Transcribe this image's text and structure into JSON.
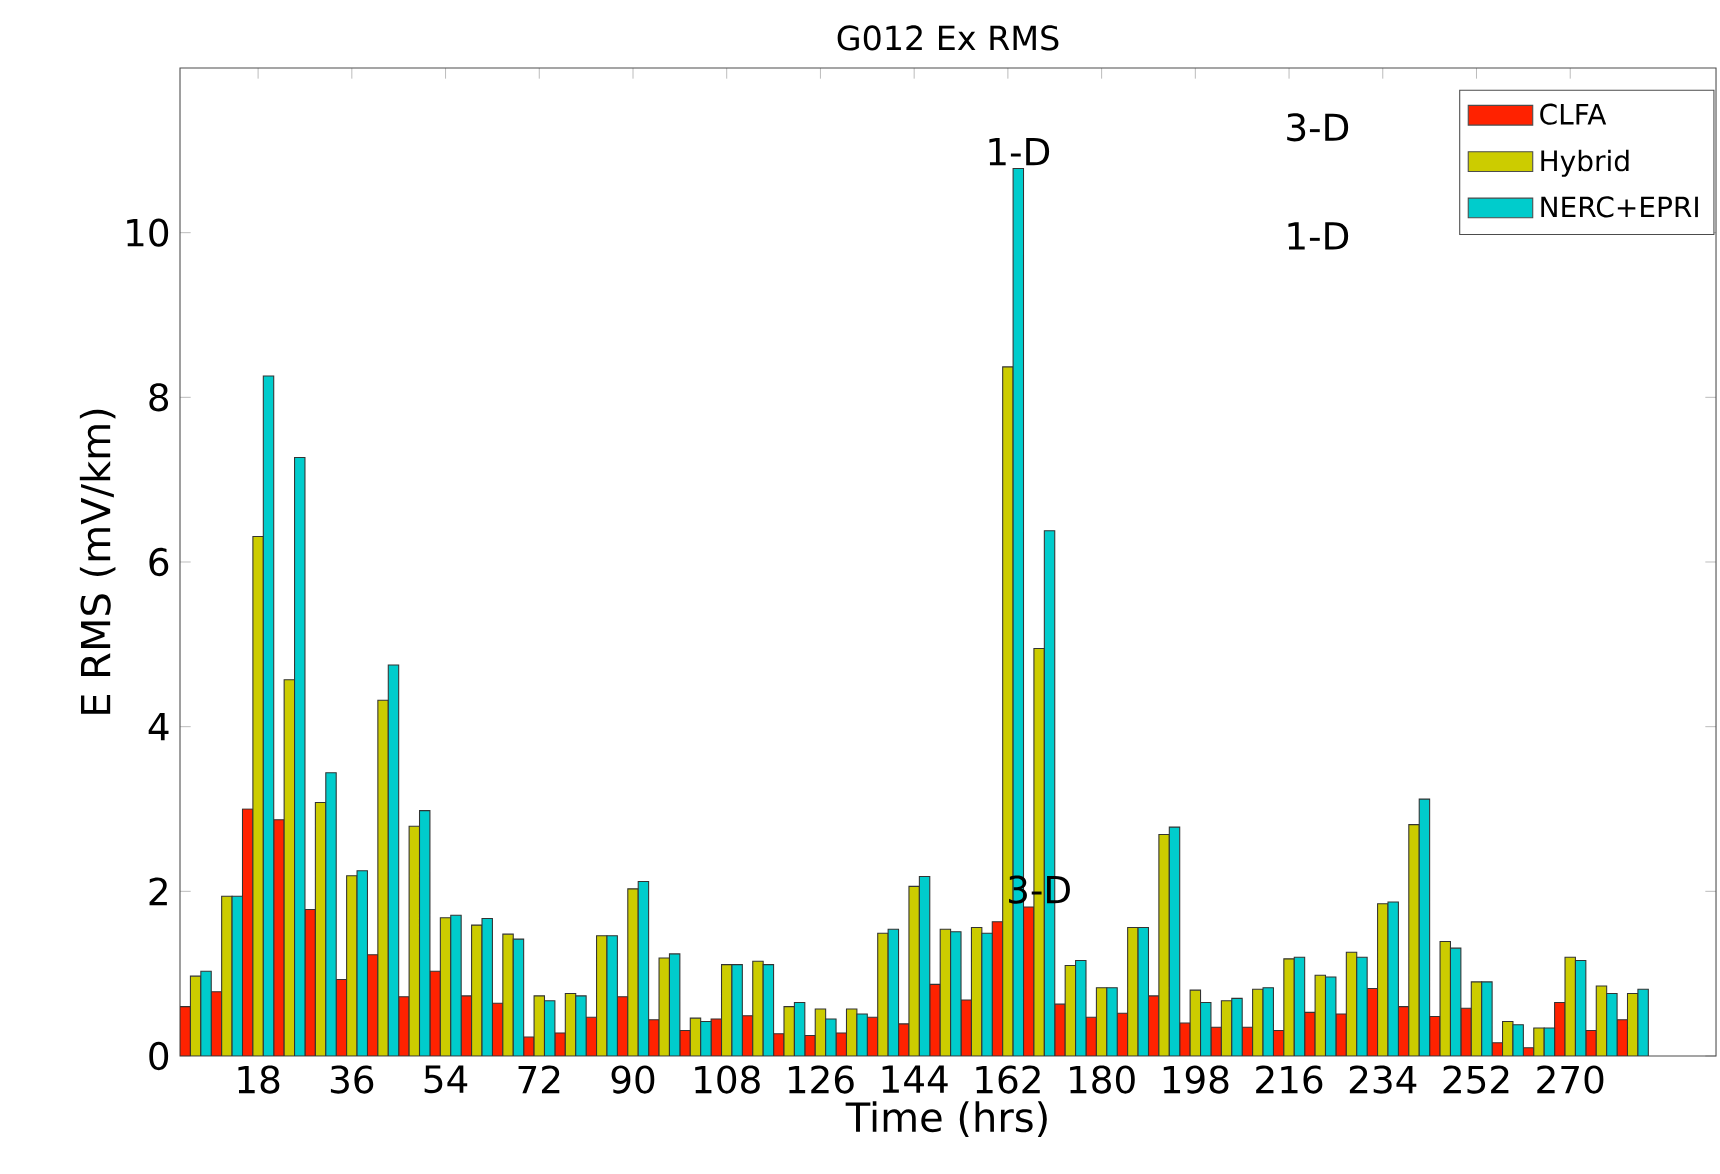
{
  "chart_data": {
    "type": "bar",
    "title": "G012 Ex RMS",
    "xlabel": "Time (hrs)",
    "ylabel": "E RMS (mV/km)",
    "x": [
      6,
      12,
      18,
      24,
      30,
      36,
      42,
      48,
      54,
      60,
      66,
      72,
      78,
      84,
      90,
      96,
      102,
      108,
      114,
      120,
      126,
      132,
      138,
      144,
      150,
      156,
      162,
      168,
      174,
      180,
      186,
      192,
      198,
      204,
      210,
      216,
      222,
      228,
      234,
      240,
      246,
      252,
      258,
      264,
      270,
      276,
      282
    ],
    "series": [
      {
        "name": "CLFA",
        "color": "#ff2200",
        "values": [
          0.6,
          0.78,
          3.0,
          2.87,
          1.78,
          0.93,
          1.23,
          0.72,
          1.03,
          0.73,
          0.64,
          0.23,
          0.28,
          0.47,
          0.72,
          0.44,
          0.31,
          0.45,
          0.49,
          0.27,
          0.25,
          0.28,
          0.47,
          0.39,
          0.87,
          0.68,
          1.63,
          1.81,
          0.63,
          0.47,
          0.52,
          0.73,
          0.4,
          0.35,
          0.35,
          0.31,
          0.53,
          0.51,
          0.82,
          0.6,
          0.48,
          0.58,
          0.16,
          0.1,
          0.65,
          0.31,
          0.44
        ]
      },
      {
        "name": "Hybrid",
        "color": "#cccc00",
        "values": [
          0.97,
          1.94,
          6.31,
          4.57,
          3.08,
          2.19,
          4.32,
          2.79,
          1.68,
          1.59,
          1.48,
          0.73,
          0.76,
          1.46,
          2.03,
          1.19,
          0.46,
          1.11,
          1.15,
          0.6,
          0.57,
          0.57,
          1.49,
          2.06,
          1.54,
          1.56,
          8.37,
          4.95,
          1.1,
          0.83,
          1.56,
          2.69,
          0.8,
          0.67,
          0.81,
          1.18,
          0.98,
          1.26,
          1.85,
          2.81,
          1.39,
          0.9,
          0.42,
          0.34,
          1.2,
          0.85,
          0.76
        ]
      },
      {
        "name": "NERC+EPRI",
        "color": "#00cccc",
        "values": [
          1.03,
          1.94,
          8.26,
          7.27,
          3.44,
          2.25,
          4.75,
          2.98,
          1.71,
          1.67,
          1.42,
          0.67,
          0.73,
          1.46,
          2.12,
          1.24,
          0.42,
          1.11,
          1.11,
          0.65,
          0.45,
          0.51,
          1.54,
          2.18,
          1.51,
          1.49,
          10.78,
          6.38,
          1.16,
          0.83,
          1.56,
          2.78,
          0.65,
          0.7,
          0.83,
          1.2,
          0.96,
          1.2,
          1.87,
          3.12,
          1.31,
          0.9,
          0.38,
          0.34,
          1.16,
          0.76,
          0.81
        ]
      }
    ],
    "xlim": [
      3,
      298
    ],
    "xticks": [
      18,
      36,
      54,
      72,
      90,
      108,
      126,
      144,
      162,
      180,
      198,
      216,
      234,
      252,
      270
    ],
    "ylim": [
      0,
      12
    ],
    "yticks": [
      0,
      2,
      4,
      6,
      8,
      10
    ],
    "legend": "top right",
    "annotations": [
      {
        "text": "1-D",
        "x": 164,
        "y": 10.78
      },
      {
        "text": "3-D",
        "x": 168,
        "y": 1.81
      },
      "3-D",
      "1-D"
    ]
  }
}
